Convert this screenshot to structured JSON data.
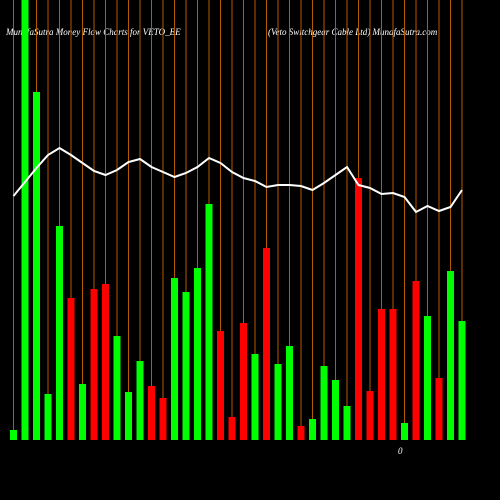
{
  "chart_data": {
    "type": "bar",
    "title": "MunafaSutra  Money Flow  Charts for VETO_BE",
    "subtitle": "(Veto  Switchgear  Cable  Ltd) MunafaSutra.com",
    "annotation": "0",
    "categories": [
      null,
      null,
      null,
      null,
      null,
      null,
      null,
      null,
      null,
      null,
      null,
      null,
      null,
      null,
      null,
      null,
      null,
      null,
      null,
      null,
      null,
      null,
      null,
      null,
      null,
      null,
      null,
      null,
      null,
      null,
      null,
      null,
      null,
      null,
      null,
      null,
      null,
      null,
      null,
      null
    ],
    "values": [
      10,
      440,
      348,
      46,
      214,
      142,
      56,
      151,
      156,
      104,
      48,
      79,
      54,
      42,
      162,
      148,
      172,
      236,
      109,
      23,
      117,
      86,
      192,
      76,
      94,
      14,
      21,
      74,
      60,
      34,
      262,
      49,
      131,
      131,
      17,
      159,
      124,
      62,
      169,
      119
    ],
    "bar_colors": [
      "#00ff00",
      "#00ff00",
      "#00ff00",
      "#00ff00",
      "#00ff00",
      "#ff0000",
      "#00ff00",
      "#ff0000",
      "#ff0000",
      "#00ff00",
      "#00ff00",
      "#00ff00",
      "#ff0000",
      "#ff0000",
      "#00ff00",
      "#00ff00",
      "#00ff00",
      "#00ff00",
      "#ff0000",
      "#ff0000",
      "#ff0000",
      "#00ff00",
      "#ff0000",
      "#00ff00",
      "#00ff00",
      "#ff0000",
      "#00ff00",
      "#00ff00",
      "#00ff00",
      "#00ff00",
      "#ff0000",
      "#ff0000",
      "#ff0000",
      "#ff0000",
      "#00ff00",
      "#ff0000",
      "#00ff00",
      "#ff0000",
      "#00ff00",
      "#00ff00"
    ],
    "line": {
      "color": "#ffffff",
      "values": [
        244,
        258,
        272,
        285,
        292,
        285,
        277,
        269,
        265,
        270,
        278,
        281,
        273,
        268,
        263,
        267,
        273,
        282,
        277,
        268,
        262,
        259,
        253,
        255,
        255,
        254,
        250,
        257,
        265,
        273,
        255,
        252,
        246,
        247,
        243,
        228,
        234,
        229,
        233,
        250
      ]
    },
    "grid_color": "#b35900",
    "ylim": [
      0,
      440
    ]
  }
}
